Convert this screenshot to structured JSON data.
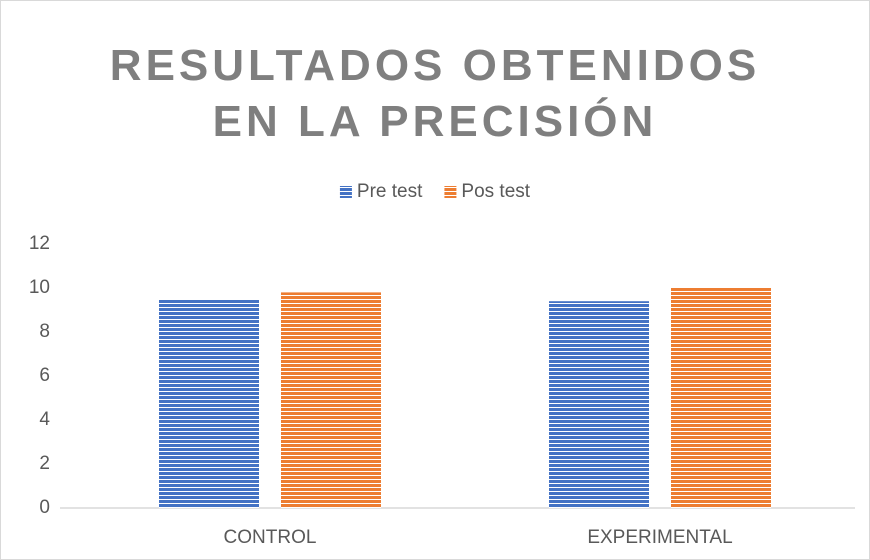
{
  "chart_data": {
    "type": "bar",
    "title": "RESULTADOS OBTENIDOS EN LA PRECISIÓN",
    "categories": [
      "CONTROL",
      "EXPERIMENTAL"
    ],
    "series": [
      {
        "name": "Pre test",
        "color": "#4472c4",
        "values": [
          9.5,
          9.4
        ]
      },
      {
        "name": "Pos test",
        "color": "#ed7d31",
        "values": [
          9.8,
          10.0
        ]
      }
    ],
    "ylim": [
      0,
      12
    ],
    "yticks": [
      0,
      2,
      4,
      6,
      8,
      10,
      12
    ],
    "grid": false,
    "legend": "top"
  }
}
